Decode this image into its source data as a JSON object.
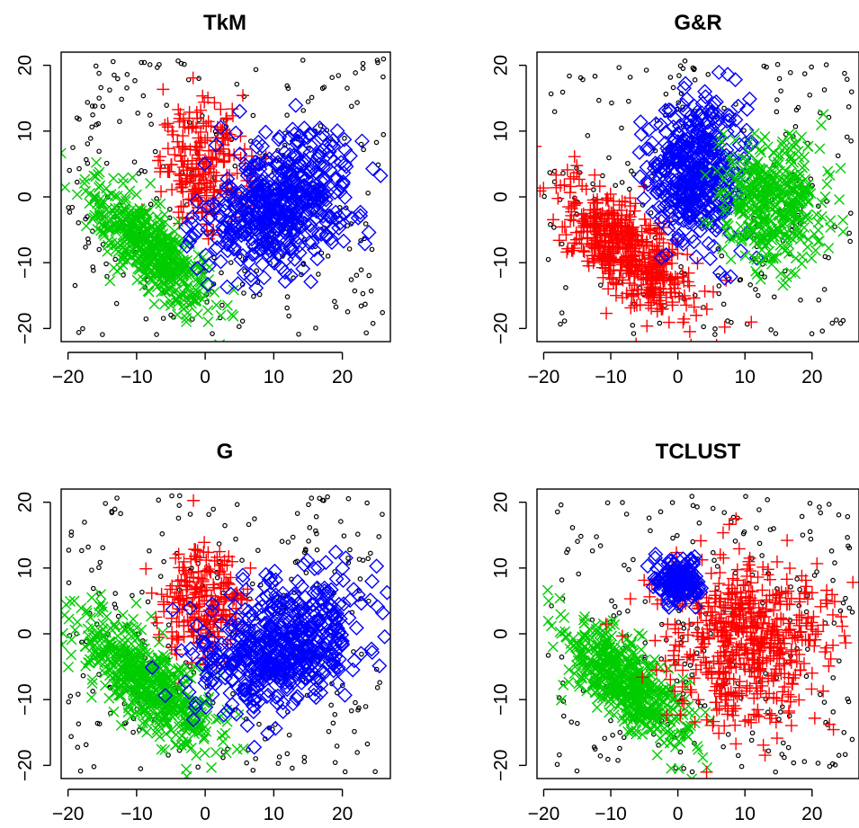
{
  "chart_data": [
    {
      "type": "scatter",
      "title": "TkM",
      "xlabel": "",
      "ylabel": "",
      "xlim": [
        -21,
        27
      ],
      "ylim": [
        -22,
        22
      ],
      "xticks": [
        -20,
        -10,
        0,
        10,
        20
      ],
      "yticks": [
        -20,
        -10,
        0,
        10,
        20
      ],
      "series": [
        {
          "marker": "circle",
          "color": "#000000",
          "kind": "outliers",
          "spread": {
            "x": [
              -20,
              26
            ],
            "y": [
              -21,
              21
            ],
            "count": 260
          }
        },
        {
          "marker": "plus",
          "color": "#ff0000",
          "kind": "cluster",
          "center": [
            0,
            5
          ],
          "sd": [
            3.2,
            4.5
          ],
          "rho": 0.1,
          "count": 220
        },
        {
          "marker": "cross",
          "color": "#00cc00",
          "kind": "cluster",
          "center": [
            -8,
            -8
          ],
          "sd": [
            4.5,
            4.8
          ],
          "rho": -0.75,
          "count": 520
        },
        {
          "marker": "diamond",
          "color": "#0000ff",
          "kind": "cluster",
          "center": [
            11,
            -1
          ],
          "sd": [
            5.5,
            5.0
          ],
          "rho": 0.3,
          "count": 520
        }
      ]
    },
    {
      "type": "scatter",
      "title": "G&R",
      "xlabel": "",
      "ylabel": "",
      "xlim": [
        -21,
        27
      ],
      "ylim": [
        -22,
        22
      ],
      "xticks": [
        -20,
        -10,
        0,
        10,
        20
      ],
      "yticks": [
        -20,
        -10,
        0,
        10,
        20
      ],
      "series": [
        {
          "marker": "circle",
          "color": "#000000",
          "kind": "outliers",
          "spread": {
            "x": [
              -20,
              26
            ],
            "y": [
              -21,
              21
            ],
            "count": 230
          }
        },
        {
          "marker": "plus",
          "color": "#ff0000",
          "kind": "cluster",
          "center": [
            -8,
            -8
          ],
          "sd": [
            5,
            5
          ],
          "rho": -0.7,
          "count": 540
        },
        {
          "marker": "diamond",
          "color": "#0000ff",
          "kind": "cluster",
          "center": [
            3,
            4
          ],
          "sd": [
            3.5,
            5.5
          ],
          "rho": 0.0,
          "count": 420
        },
        {
          "marker": "cross",
          "color": "#00cc00",
          "kind": "cluster",
          "center": [
            14,
            -1
          ],
          "sd": [
            3.8,
            5.2
          ],
          "rho": 0.0,
          "count": 420
        }
      ]
    },
    {
      "type": "scatter",
      "title": "G",
      "xlabel": "",
      "ylabel": "",
      "xlim": [
        -21,
        27
      ],
      "ylim": [
        -22,
        22
      ],
      "xticks": [
        -20,
        -10,
        0,
        10,
        20
      ],
      "yticks": [
        -20,
        -10,
        0,
        10,
        20
      ],
      "series": [
        {
          "marker": "circle",
          "color": "#000000",
          "kind": "outliers",
          "spread": {
            "x": [
              -20,
              26
            ],
            "y": [
              -21,
              21
            ],
            "count": 260
          }
        },
        {
          "marker": "plus",
          "color": "#ff0000",
          "kind": "cluster",
          "center": [
            0,
            5
          ],
          "sd": [
            3.2,
            4.5
          ],
          "rho": 0.1,
          "count": 220
        },
        {
          "marker": "cross",
          "color": "#00cc00",
          "kind": "cluster",
          "center": [
            -9,
            -7
          ],
          "sd": [
            5,
            5
          ],
          "rho": -0.75,
          "count": 560
        },
        {
          "marker": "diamond",
          "color": "#0000ff",
          "kind": "cluster",
          "center": [
            11,
            -2
          ],
          "sd": [
            6,
            5.2
          ],
          "rho": 0.35,
          "count": 540
        }
      ]
    },
    {
      "type": "scatter",
      "title": "TCLUST",
      "xlabel": "",
      "ylabel": "",
      "xlim": [
        -21,
        27
      ],
      "ylim": [
        -22,
        22
      ],
      "xticks": [
        -20,
        -10,
        0,
        10,
        20
      ],
      "yticks": [
        -20,
        -10,
        0,
        10,
        20
      ],
      "series": [
        {
          "marker": "circle",
          "color": "#000000",
          "kind": "outliers",
          "spread": {
            "x": [
              -20,
              26
            ],
            "y": [
              -21,
              21
            ],
            "count": 240
          }
        },
        {
          "marker": "cross",
          "color": "#00cc00",
          "kind": "cluster",
          "center": [
            -8,
            -7
          ],
          "sd": [
            4.8,
            5
          ],
          "rho": -0.75,
          "count": 540
        },
        {
          "marker": "plus",
          "color": "#ff0000",
          "kind": "cluster",
          "center": [
            10,
            -1
          ],
          "sd": [
            6.5,
            6.5
          ],
          "rho": 0.0,
          "count": 560
        },
        {
          "marker": "diamond",
          "color": "#0000ff",
          "kind": "cluster",
          "center": [
            0,
            8
          ],
          "sd": [
            1.6,
            1.6
          ],
          "rho": 0.0,
          "count": 180
        }
      ]
    }
  ]
}
